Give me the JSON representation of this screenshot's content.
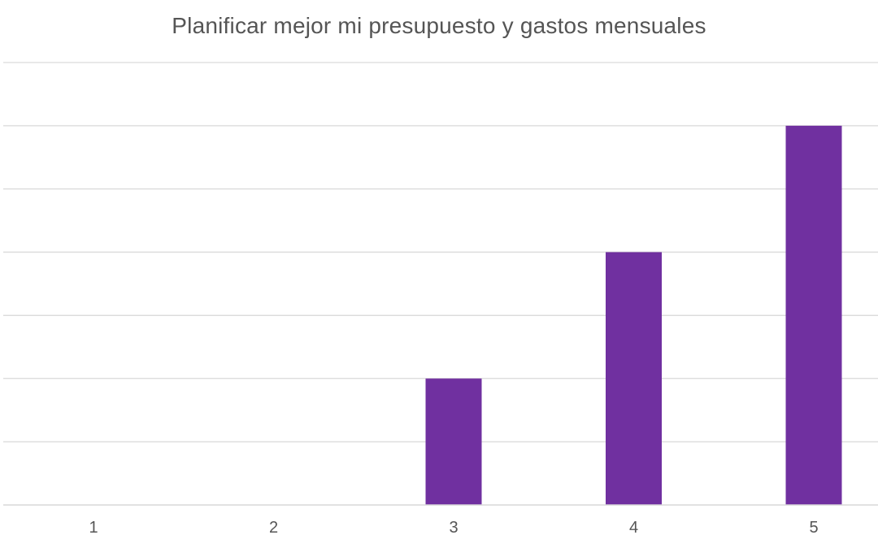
{
  "chart_data": {
    "type": "bar",
    "title": "Planificar mejor mi presupuesto y gastos mensuales",
    "xlabel": "",
    "ylabel": "",
    "categories": [
      "1",
      "2",
      "3",
      "4",
      "5"
    ],
    "values": [
      0,
      0,
      1,
      2,
      3
    ],
    "ylim": [
      0,
      3.5
    ],
    "grid": true,
    "gridline_step": 0.5,
    "y_tick_labels_shown": false,
    "legend": "none",
    "bar_color": "#7030a0",
    "grid_color": "#d9d9d9",
    "axis_color": "#d9d9d9",
    "text_color": "#555555"
  }
}
